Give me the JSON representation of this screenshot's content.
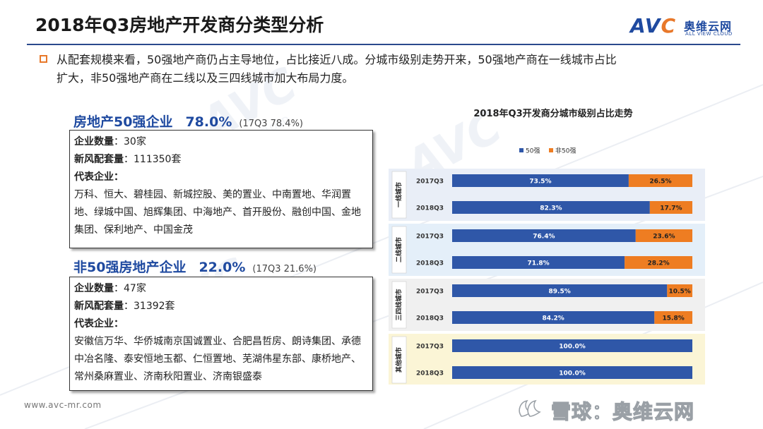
{
  "header": {
    "title": "2018年Q3房地产开发商分类型分析",
    "logo_avc_left": "AV",
    "logo_avc_c": "C",
    "logo_cn": "奥维云网",
    "logo_en": "ALL VIEW CLOUD"
  },
  "bullet": {
    "line1": "从配套规模来看，50强地产商仍占主导地位，占比接近八成。分城市级别走势开来，50强地产商在一线城市占比",
    "line2": "扩大，非50强地产商在二线以及三四线城市加大布局力度。"
  },
  "top50": {
    "title": "房地产50强企业",
    "pct": "78.0%",
    "prev": "(17Q3 78.4%)",
    "count_label": "企业数量",
    "count_value": "：30家",
    "volume_label": "新风配套量",
    "volume_value": "：111350套",
    "rep_label": "代表企业：",
    "rep_list": "万科、恒大、碧桂园、新城控股、美的置业、中南置地、华润置地、绿城中国、旭辉集团、中海地产、首开股份、融创中国、金地集团、保利地产、中国金茂"
  },
  "non50": {
    "title": "非50强房地产企业",
    "pct": "22.0%",
    "prev": "(17Q3 21.6%)",
    "count_label": "企业数量",
    "count_value": "：47家",
    "volume_label": "新风配套量",
    "volume_value": "：31392套",
    "rep_label": "代表企业：",
    "rep_list": "安徽信万华、华侨城南京国诚置业、合肥昌哲房、朗诗集团、承德中冶名隆、泰安恒地玉都、仁恒置地、芜湖伟星东部、康桥地产、常州桑麻置业、济南秋阳置业、济南银盛泰"
  },
  "chart_data": {
    "type": "bar",
    "orientation": "horizontal",
    "stacked": true,
    "title": "2018年Q3开发商分城市级别占比走势",
    "legend_position": "top",
    "xlim": [
      0,
      100
    ],
    "series": [
      {
        "name": "50强",
        "color": "#2f57a8"
      },
      {
        "name": "非50强",
        "color": "#ee7d22"
      }
    ],
    "groups": [
      {
        "name": "一线城市",
        "bg": "#e9eef7",
        "rows": [
          {
            "period": "2017Q3",
            "top50": 73.5,
            "non50": 26.5,
            "top50_label": "73.5%",
            "non50_label": "26.5%"
          },
          {
            "period": "2018Q3",
            "top50": 82.3,
            "non50": 17.7,
            "top50_label": "82.3%",
            "non50_label": "17.7%"
          }
        ]
      },
      {
        "name": "二线城市",
        "bg": "#e4eff9",
        "rows": [
          {
            "period": "2017Q3",
            "top50": 76.4,
            "non50": 23.6,
            "top50_label": "76.4%",
            "non50_label": "23.6%"
          },
          {
            "period": "2018Q3",
            "top50": 71.8,
            "non50": 28.2,
            "top50_label": "71.8%",
            "non50_label": "28.2%"
          }
        ]
      },
      {
        "name": "三四线城市",
        "bg": "#f0f0f0",
        "rows": [
          {
            "period": "2017Q3",
            "top50": 89.5,
            "non50": 10.5,
            "top50_label": "89.5%",
            "non50_label": "10.5%"
          },
          {
            "period": "2018Q3",
            "top50": 84.2,
            "non50": 15.8,
            "top50_label": "84.2%",
            "non50_label": "15.8%"
          }
        ]
      },
      {
        "name": "其他城市",
        "bg": "#fbf5d6",
        "rows": [
          {
            "period": "2017Q3",
            "top50": 100.0,
            "non50": 0,
            "top50_label": "100.0%",
            "non50_label": ""
          },
          {
            "period": "2018Q3",
            "top50": 100.0,
            "non50": 0,
            "top50_label": "100.0%",
            "non50_label": ""
          }
        ]
      }
    ]
  },
  "footer": {
    "url": "www.avc-mr.com",
    "snowball_text": "雪球：奥维云网"
  }
}
